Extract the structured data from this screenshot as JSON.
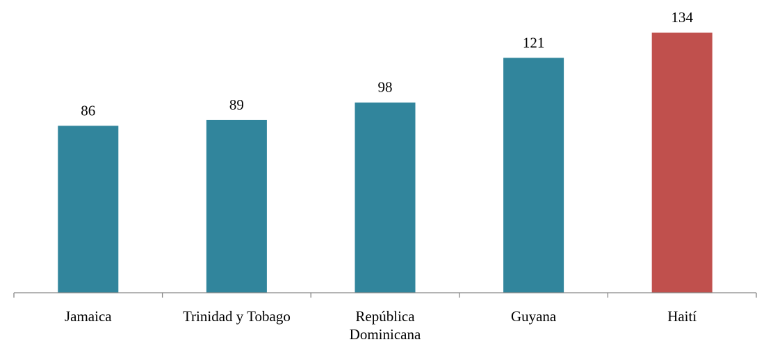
{
  "chart_data": {
    "type": "bar",
    "title": "",
    "xlabel": "",
    "ylabel": "",
    "categories": [
      [
        "Jamaica"
      ],
      [
        "Trinidad y Tobago"
      ],
      [
        "República",
        "Dominicana"
      ],
      [
        "Guyana"
      ],
      [
        "Haití"
      ]
    ],
    "values": [
      86,
      89,
      98,
      121,
      134
    ],
    "value_labels": [
      "86",
      "89",
      "98",
      "121",
      "134"
    ],
    "bar_colors": [
      "#31859c",
      "#31859c",
      "#31859c",
      "#31859c",
      "#c0504d"
    ],
    "ylim": [
      0,
      140
    ],
    "grid": false,
    "legend": "none",
    "axis_color": "#868686"
  }
}
